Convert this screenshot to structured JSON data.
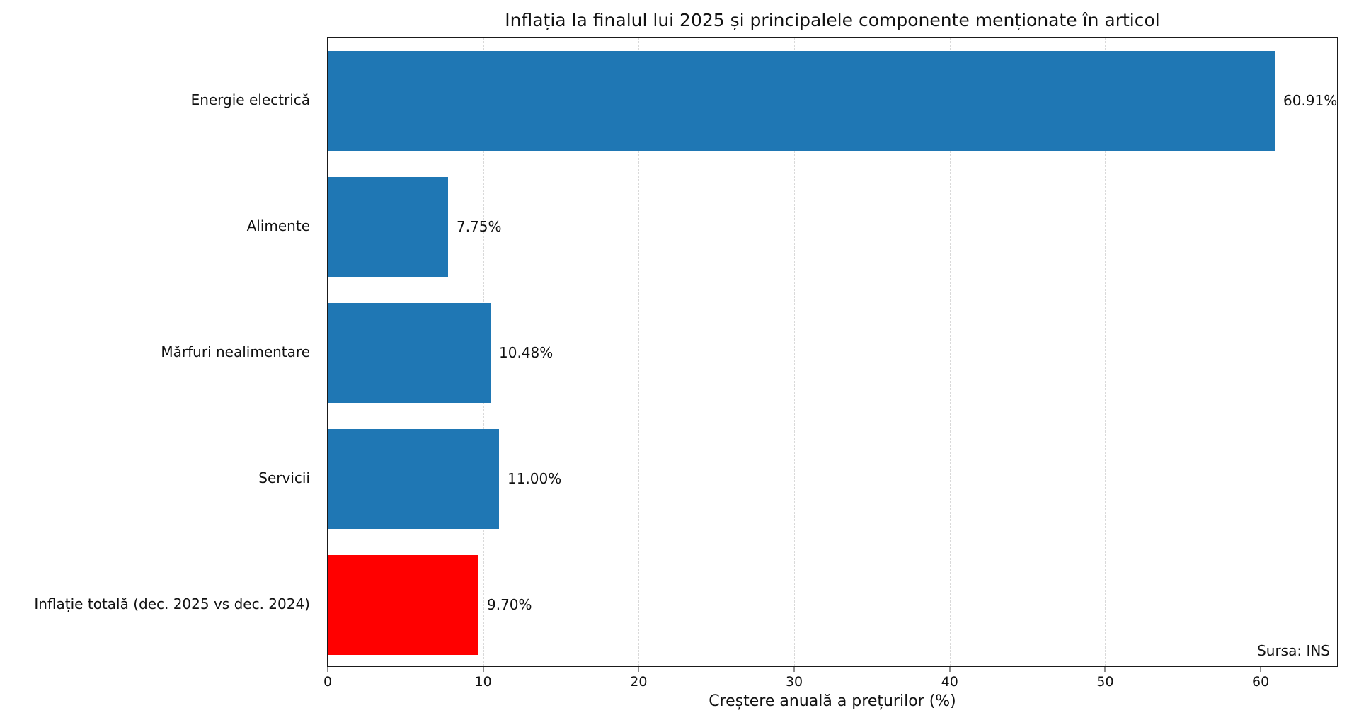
{
  "chart_data": {
    "type": "bar",
    "orientation": "horizontal",
    "title": "Inflația la finalul lui 2025 și principalele componente menționate în articol",
    "xlabel": "Creștere anuală a prețurilor (%)",
    "ylabel": "",
    "source_note": "Sursa: INS",
    "categories": [
      "Energie electrică",
      "Alimente",
      "Mărfuri nealimentare",
      "Servicii",
      "Inflație totală (dec. 2025 vs dec. 2024)"
    ],
    "values": [
      60.91,
      7.75,
      10.48,
      11.0,
      9.7
    ],
    "value_labels": [
      "60.91%",
      "7.75%",
      "10.48%",
      "11.00%",
      "9.70%"
    ],
    "bar_colors": [
      "#1f77b4",
      "#1f77b4",
      "#1f77b4",
      "#1f77b4",
      "#ff0000"
    ],
    "x_ticks": [
      0,
      10,
      20,
      30,
      40,
      50,
      60
    ],
    "xlim": [
      0,
      65
    ],
    "grid": "vertical-dashed",
    "legend": "none"
  },
  "colors": {
    "bar_blue": "#1f77b4",
    "bar_red": "#ff0000",
    "gridline": "#d9d9d9",
    "axis": "#1a1a1a",
    "text": "#111111"
  }
}
